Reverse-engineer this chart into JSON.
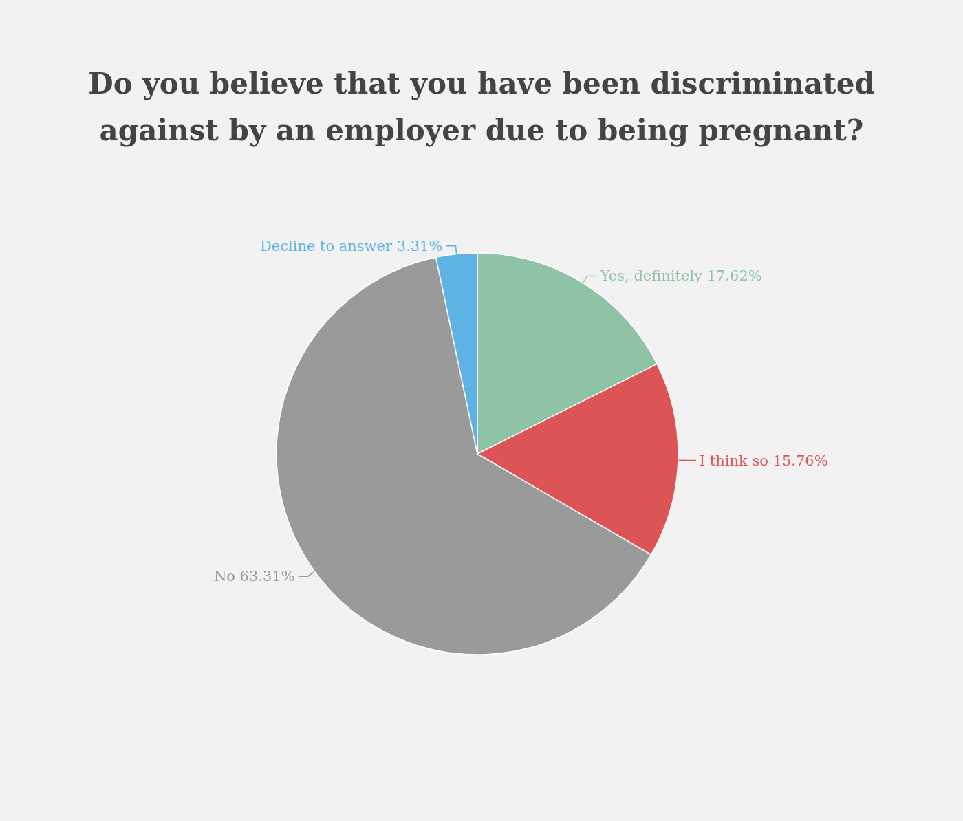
{
  "chart_data": {
    "type": "pie",
    "title": "Do you believe that you have been discriminated against by an employer due to being pregnant?",
    "categories": [
      "Yes, definitely",
      "I think so",
      "No",
      "Decline to answer"
    ],
    "values": [
      17.62,
      15.76,
      63.31,
      3.31
    ],
    "value_labels": [
      "17.62%",
      "15.76%",
      "63.31%",
      "3.31%"
    ],
    "colors": [
      "#8fc3a6",
      "#dc5455",
      "#9a9a9a",
      "#5db4e4"
    ]
  }
}
